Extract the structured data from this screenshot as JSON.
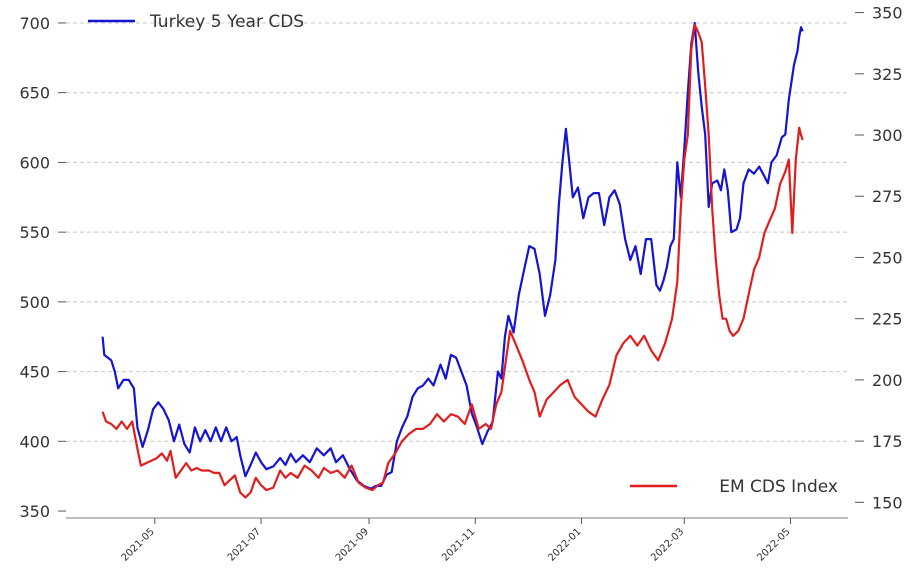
{
  "chart_data": {
    "type": "line",
    "title": "",
    "xlabel": "",
    "ylabel_left": "",
    "ylabel_right": "",
    "legend": {
      "show": true
    },
    "grid": {
      "horizontal": true,
      "style": "dashed"
    },
    "x_tick_labels": [
      "2021-05",
      "2021-07",
      "2021-09",
      "2021-11",
      "2022-01",
      "2022-03",
      "2022-05"
    ],
    "y_left": {
      "ticks": [
        350,
        400,
        450,
        500,
        550,
        600,
        650,
        700
      ],
      "range": [
        345,
        705
      ]
    },
    "y_right": {
      "ticks": [
        150,
        175,
        200,
        225,
        250,
        275,
        300,
        325,
        350
      ],
      "range": [
        143.6,
        348.6
      ]
    },
    "series": [
      {
        "name": "Turkey 5 Year CDS",
        "color": "#1414d2",
        "axis": "left",
        "legend_position": "top-left",
        "points": [
          [
            "2021-04-01",
            475
          ],
          [
            "2021-04-02",
            462
          ],
          [
            "2021-04-06",
            458
          ],
          [
            "2021-04-08",
            450
          ],
          [
            "2021-04-10",
            438
          ],
          [
            "2021-04-13",
            444
          ],
          [
            "2021-04-16",
            444
          ],
          [
            "2021-04-19",
            438
          ],
          [
            "2021-04-21",
            410
          ],
          [
            "2021-04-24",
            396
          ],
          [
            "2021-04-27",
            408
          ],
          [
            "2021-04-30",
            423
          ],
          [
            "2021-05-03",
            428
          ],
          [
            "2021-05-06",
            423
          ],
          [
            "2021-05-09",
            415
          ],
          [
            "2021-05-12",
            400
          ],
          [
            "2021-05-15",
            412
          ],
          [
            "2021-05-18",
            398
          ],
          [
            "2021-05-21",
            392
          ],
          [
            "2021-05-24",
            410
          ],
          [
            "2021-05-27",
            400
          ],
          [
            "2021-05-30",
            408
          ],
          [
            "2021-06-02",
            400
          ],
          [
            "2021-06-05",
            410
          ],
          [
            "2021-06-08",
            400
          ],
          [
            "2021-06-11",
            410
          ],
          [
            "2021-06-14",
            400
          ],
          [
            "2021-06-17",
            403
          ],
          [
            "2021-06-19",
            390
          ],
          [
            "2021-06-22",
            375
          ],
          [
            "2021-06-25",
            383
          ],
          [
            "2021-06-28",
            392
          ],
          [
            "2021-07-01",
            385
          ],
          [
            "2021-07-04",
            380
          ],
          [
            "2021-07-08",
            382
          ],
          [
            "2021-07-12",
            388
          ],
          [
            "2021-07-15",
            383
          ],
          [
            "2021-07-18",
            391
          ],
          [
            "2021-07-21",
            385
          ],
          [
            "2021-07-25",
            390
          ],
          [
            "2021-07-29",
            385
          ],
          [
            "2021-08-02",
            395
          ],
          [
            "2021-08-06",
            390
          ],
          [
            "2021-08-10",
            395
          ],
          [
            "2021-08-13",
            385
          ],
          [
            "2021-08-17",
            390
          ],
          [
            "2021-08-21",
            380
          ],
          [
            "2021-08-25",
            372
          ],
          [
            "2021-08-29",
            368
          ],
          [
            "2021-09-02",
            366
          ],
          [
            "2021-09-05",
            368
          ],
          [
            "2021-09-08",
            368
          ],
          [
            "2021-09-11",
            376
          ],
          [
            "2021-09-14",
            378
          ],
          [
            "2021-09-17",
            400
          ],
          [
            "2021-09-20",
            410
          ],
          [
            "2021-09-23",
            418
          ],
          [
            "2021-09-26",
            432
          ],
          [
            "2021-09-29",
            438
          ],
          [
            "2021-10-02",
            440
          ],
          [
            "2021-10-05",
            445
          ],
          [
            "2021-10-08",
            440
          ],
          [
            "2021-10-12",
            455
          ],
          [
            "2021-10-15",
            445
          ],
          [
            "2021-10-18",
            462
          ],
          [
            "2021-10-21",
            460
          ],
          [
            "2021-10-24",
            450
          ],
          [
            "2021-10-27",
            440
          ],
          [
            "2021-10-30",
            420
          ],
          [
            "2021-11-02",
            410
          ],
          [
            "2021-11-05",
            398
          ],
          [
            "2021-11-08",
            407
          ],
          [
            "2021-11-11",
            414
          ],
          [
            "2021-11-14",
            450
          ],
          [
            "2021-11-16",
            445
          ],
          [
            "2021-11-18",
            475
          ],
          [
            "2021-11-20",
            490
          ],
          [
            "2021-11-23",
            478
          ],
          [
            "2021-11-26",
            505
          ],
          [
            "2021-11-29",
            523
          ],
          [
            "2021-12-02",
            540
          ],
          [
            "2021-12-05",
            538
          ],
          [
            "2021-12-08",
            520
          ],
          [
            "2021-12-11",
            490
          ],
          [
            "2021-12-14",
            505
          ],
          [
            "2021-12-17",
            530
          ],
          [
            "2021-12-19",
            570
          ],
          [
            "2021-12-21",
            600
          ],
          [
            "2021-12-23",
            624
          ],
          [
            "2021-12-25",
            600
          ],
          [
            "2021-12-27",
            575
          ],
          [
            "2021-12-30",
            582
          ],
          [
            "2022-01-02",
            560
          ],
          [
            "2022-01-05",
            575
          ],
          [
            "2022-01-08",
            578
          ],
          [
            "2022-01-11",
            578
          ],
          [
            "2022-01-14",
            555
          ],
          [
            "2022-01-17",
            575
          ],
          [
            "2022-01-20",
            580
          ],
          [
            "2022-01-23",
            570
          ],
          [
            "2022-01-26",
            545
          ],
          [
            "2022-01-29",
            530
          ],
          [
            "2022-02-01",
            540
          ],
          [
            "2022-02-04",
            520
          ],
          [
            "2022-02-07",
            545
          ],
          [
            "2022-02-10",
            545
          ],
          [
            "2022-02-13",
            512
          ],
          [
            "2022-02-15",
            508
          ],
          [
            "2022-02-17",
            515
          ],
          [
            "2022-02-19",
            525
          ],
          [
            "2022-02-21",
            540
          ],
          [
            "2022-02-23",
            545
          ],
          [
            "2022-02-25",
            600
          ],
          [
            "2022-02-27",
            575
          ],
          [
            "2022-03-01",
            610
          ],
          [
            "2022-03-03",
            650
          ],
          [
            "2022-03-05",
            685
          ],
          [
            "2022-03-07",
            700
          ],
          [
            "2022-03-09",
            665
          ],
          [
            "2022-03-11",
            640
          ],
          [
            "2022-03-13",
            620
          ],
          [
            "2022-03-15",
            568
          ],
          [
            "2022-03-17",
            585
          ],
          [
            "2022-03-20",
            587
          ],
          [
            "2022-03-22",
            580
          ],
          [
            "2022-03-24",
            595
          ],
          [
            "2022-03-26",
            580
          ],
          [
            "2022-03-28",
            550
          ],
          [
            "2022-03-31",
            552
          ],
          [
            "2022-04-02",
            560
          ],
          [
            "2022-04-04",
            585
          ],
          [
            "2022-04-07",
            595
          ],
          [
            "2022-04-10",
            592
          ],
          [
            "2022-04-13",
            597
          ],
          [
            "2022-04-16",
            590
          ],
          [
            "2022-04-18",
            585
          ],
          [
            "2022-04-20",
            600
          ],
          [
            "2022-04-23",
            605
          ],
          [
            "2022-04-26",
            618
          ],
          [
            "2022-04-28",
            620
          ],
          [
            "2022-04-30",
            645
          ],
          [
            "2022-05-03",
            670
          ],
          [
            "2022-05-05",
            680
          ],
          [
            "2022-05-06",
            690
          ],
          [
            "2022-05-07",
            697
          ],
          [
            "2022-05-08",
            694
          ]
        ]
      },
      {
        "name": "EM CDS Index",
        "color": "#e11e1e",
        "axis": "right",
        "legend_position": "bottom-right",
        "points": [
          [
            "2021-04-01",
            187
          ],
          [
            "2021-04-03",
            183
          ],
          [
            "2021-04-06",
            182
          ],
          [
            "2021-04-09",
            180
          ],
          [
            "2021-04-12",
            183
          ],
          [
            "2021-04-15",
            180
          ],
          [
            "2021-04-18",
            183
          ],
          [
            "2021-04-21",
            172
          ],
          [
            "2021-04-23",
            165
          ],
          [
            "2021-04-26",
            166
          ],
          [
            "2021-04-29",
            167
          ],
          [
            "2021-05-02",
            168
          ],
          [
            "2021-05-05",
            170
          ],
          [
            "2021-05-08",
            167
          ],
          [
            "2021-05-10",
            171
          ],
          [
            "2021-05-13",
            160
          ],
          [
            "2021-05-16",
            163
          ],
          [
            "2021-05-19",
            166
          ],
          [
            "2021-05-22",
            163
          ],
          [
            "2021-05-25",
            164
          ],
          [
            "2021-05-28",
            163
          ],
          [
            "2021-06-01",
            163
          ],
          [
            "2021-06-04",
            162
          ],
          [
            "2021-06-07",
            162
          ],
          [
            "2021-06-10",
            157
          ],
          [
            "2021-06-13",
            159
          ],
          [
            "2021-06-16",
            161
          ],
          [
            "2021-06-19",
            154
          ],
          [
            "2021-06-22",
            152
          ],
          [
            "2021-06-25",
            154
          ],
          [
            "2021-06-28",
            160
          ],
          [
            "2021-07-01",
            157
          ],
          [
            "2021-07-04",
            155
          ],
          [
            "2021-07-08",
            156
          ],
          [
            "2021-07-12",
            163
          ],
          [
            "2021-07-15",
            160
          ],
          [
            "2021-07-18",
            162
          ],
          [
            "2021-07-22",
            160
          ],
          [
            "2021-07-26",
            165
          ],
          [
            "2021-07-30",
            163
          ],
          [
            "2021-08-03",
            160
          ],
          [
            "2021-08-06",
            164
          ],
          [
            "2021-08-10",
            162
          ],
          [
            "2021-08-14",
            163
          ],
          [
            "2021-08-18",
            160
          ],
          [
            "2021-08-22",
            165
          ],
          [
            "2021-08-26",
            158
          ],
          [
            "2021-08-30",
            156
          ],
          [
            "2021-09-03",
            155
          ],
          [
            "2021-09-06",
            157
          ],
          [
            "2021-09-09",
            158
          ],
          [
            "2021-09-12",
            166
          ],
          [
            "2021-09-16",
            170
          ],
          [
            "2021-09-20",
            175
          ],
          [
            "2021-09-24",
            178
          ],
          [
            "2021-09-28",
            180
          ],
          [
            "2021-10-02",
            180
          ],
          [
            "2021-10-06",
            182
          ],
          [
            "2021-10-10",
            186
          ],
          [
            "2021-10-14",
            183
          ],
          [
            "2021-10-18",
            186
          ],
          [
            "2021-10-22",
            185
          ],
          [
            "2021-10-26",
            182
          ],
          [
            "2021-10-30",
            190
          ],
          [
            "2021-11-03",
            180
          ],
          [
            "2021-11-07",
            182
          ],
          [
            "2021-11-10",
            180
          ],
          [
            "2021-11-13",
            190
          ],
          [
            "2021-11-16",
            195
          ],
          [
            "2021-11-19",
            210
          ],
          [
            "2021-11-21",
            220
          ],
          [
            "2021-11-24",
            215
          ],
          [
            "2021-11-28",
            208
          ],
          [
            "2021-12-02",
            200
          ],
          [
            "2021-12-05",
            195
          ],
          [
            "2021-12-08",
            185
          ],
          [
            "2021-12-12",
            192
          ],
          [
            "2021-12-16",
            195
          ],
          [
            "2021-12-20",
            198
          ],
          [
            "2021-12-24",
            200
          ],
          [
            "2021-12-28",
            193
          ],
          [
            "2022-01-01",
            190
          ],
          [
            "2022-01-05",
            187
          ],
          [
            "2022-01-09",
            185
          ],
          [
            "2022-01-13",
            192
          ],
          [
            "2022-01-17",
            198
          ],
          [
            "2022-01-21",
            210
          ],
          [
            "2022-01-25",
            215
          ],
          [
            "2022-01-29",
            218
          ],
          [
            "2022-02-02",
            214
          ],
          [
            "2022-02-06",
            218
          ],
          [
            "2022-02-10",
            212
          ],
          [
            "2022-02-14",
            208
          ],
          [
            "2022-02-18",
            215
          ],
          [
            "2022-02-22",
            225
          ],
          [
            "2022-02-25",
            240
          ],
          [
            "2022-02-27",
            270
          ],
          [
            "2022-03-01",
            290
          ],
          [
            "2022-03-03",
            300
          ],
          [
            "2022-03-05",
            335
          ],
          [
            "2022-03-07",
            345
          ],
          [
            "2022-03-09",
            342
          ],
          [
            "2022-03-11",
            338
          ],
          [
            "2022-03-13",
            320
          ],
          [
            "2022-03-15",
            300
          ],
          [
            "2022-03-17",
            270
          ],
          [
            "2022-03-19",
            250
          ],
          [
            "2022-03-21",
            235
          ],
          [
            "2022-03-23",
            225
          ],
          [
            "2022-03-25",
            225
          ],
          [
            "2022-03-27",
            220
          ],
          [
            "2022-03-29",
            218
          ],
          [
            "2022-04-01",
            220
          ],
          [
            "2022-04-04",
            225
          ],
          [
            "2022-04-07",
            235
          ],
          [
            "2022-04-10",
            245
          ],
          [
            "2022-04-13",
            250
          ],
          [
            "2022-04-16",
            260
          ],
          [
            "2022-04-19",
            265
          ],
          [
            "2022-04-22",
            270
          ],
          [
            "2022-04-25",
            280
          ],
          [
            "2022-04-28",
            285
          ],
          [
            "2022-04-30",
            290
          ],
          [
            "2022-05-02",
            260
          ],
          [
            "2022-05-04",
            290
          ],
          [
            "2022-05-06",
            303
          ],
          [
            "2022-05-07",
            300
          ],
          [
            "2022-05-08",
            298
          ]
        ]
      }
    ]
  }
}
